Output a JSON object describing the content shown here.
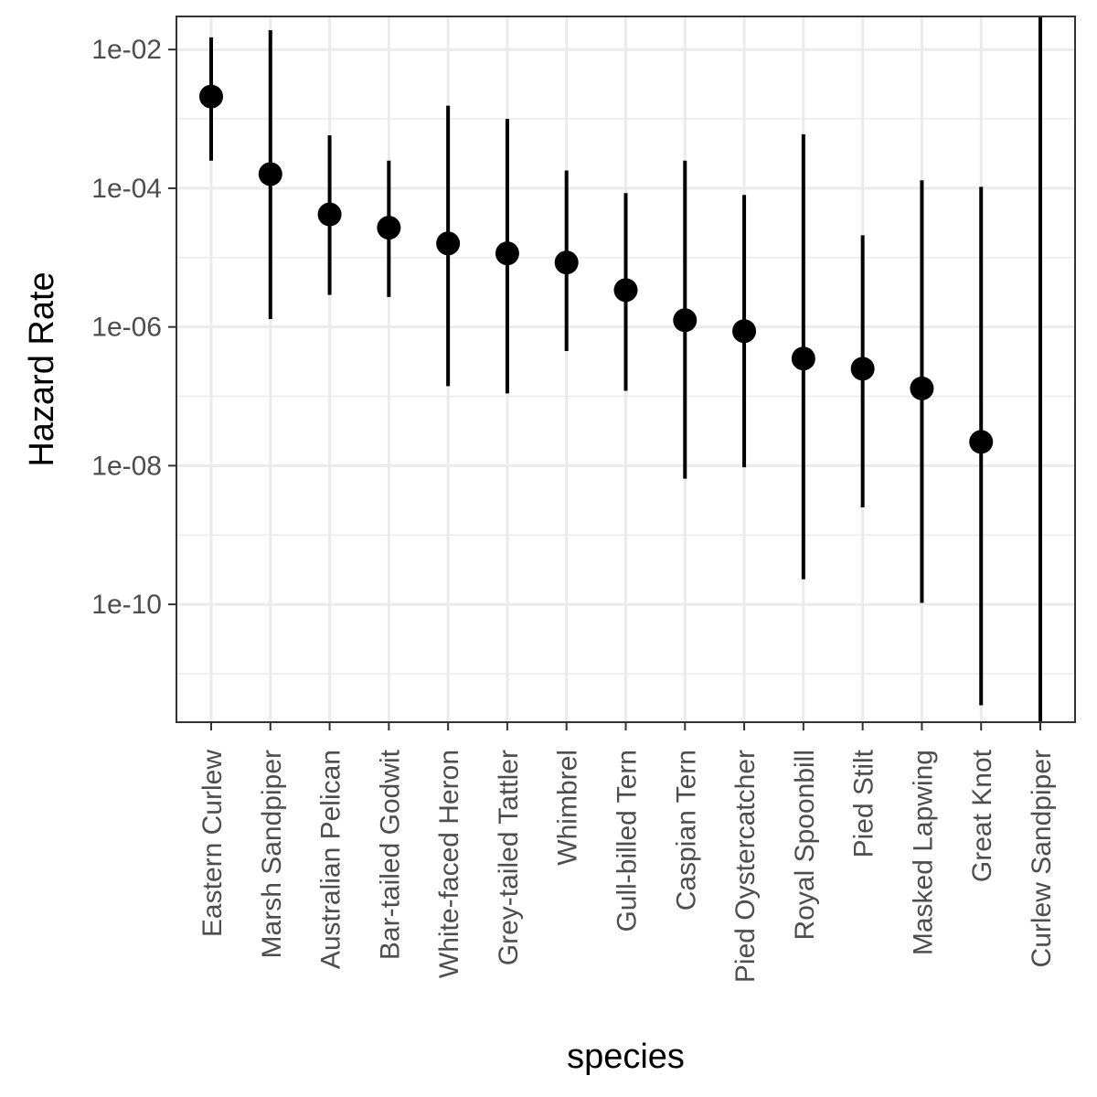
{
  "chart_data": {
    "type": "scatter",
    "title": "",
    "xlabel": "species",
    "ylabel": "Hazard Rate",
    "y_scale": "log10",
    "ylim": [
      2e-12,
      0.03
    ],
    "y_ticks": [
      {
        "value": 0.01,
        "label": "1e-02"
      },
      {
        "value": 0.0001,
        "label": "1e-04"
      },
      {
        "value": 1e-06,
        "label": "1e-06"
      },
      {
        "value": 1e-08,
        "label": "1e-08"
      },
      {
        "value": 1e-10,
        "label": "1e-10"
      }
    ],
    "grid": true,
    "legend": "none",
    "categories": [
      "Eastern Curlew",
      "Marsh Sandpiper",
      "Australian Pelican",
      "Bar-tailed Godwit",
      "White-faced Heron",
      "Grey-tailed Tattler",
      "Whimbrel",
      "Gull-billed Tern",
      "Caspian Tern",
      "Pied Oystercatcher",
      "Royal Spoonbill",
      "Pied Stilt",
      "Masked Lapwing",
      "Great Knot",
      "Curlew Sandpiper"
    ],
    "series": [
      {
        "estimate": [
          0.0021,
          0.00016,
          4.2e-05,
          2.7e-05,
          1.6e-05,
          1.15e-05,
          8.5e-06,
          3.4e-06,
          1.25e-06,
          8.7e-07,
          3.5e-07,
          2.5e-07,
          1.3e-07,
          2.2e-08,
          null
        ],
        "lower": [
          0.00025,
          1.3e-06,
          2.9e-06,
          2.7e-06,
          1.4e-07,
          1.1e-07,
          4.5e-07,
          1.2e-07,
          6.5e-09,
          9.5e-09,
          2.3e-10,
          2.5e-09,
          1.05e-10,
          3.5e-12,
          2e-12
        ],
        "upper": [
          0.015,
          0.019,
          0.00058,
          0.00025,
          0.00155,
          0.001,
          0.00018,
          8.5e-05,
          0.00025,
          8e-05,
          0.0006,
          2.1e-05,
          0.00013,
          0.000105,
          0.03
        ]
      }
    ]
  }
}
